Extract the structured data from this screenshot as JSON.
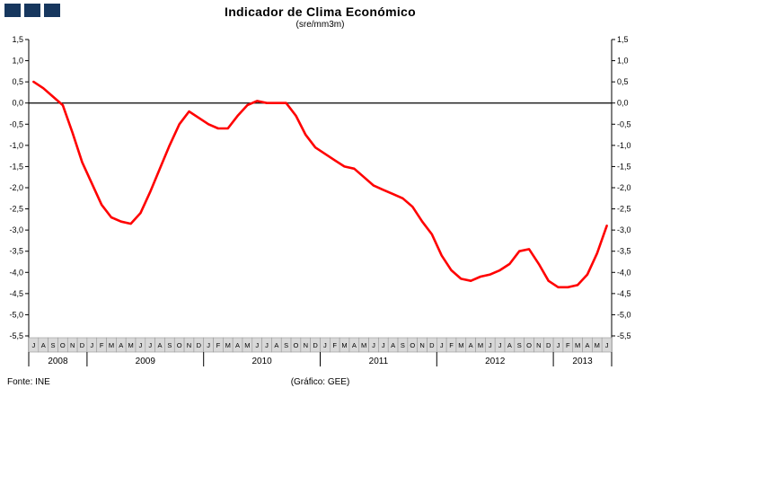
{
  "header": {
    "title": "Indicador de Clima Económico",
    "subtitle": "(sre/mm3m)"
  },
  "footer": {
    "source": "Fonte: INE",
    "credit": "(Gráfico: GEE)"
  },
  "brand": {
    "square_color": "#17375E",
    "square_count": 3
  },
  "chart_data": {
    "type": "line",
    "title": "Indicador de Clima Económico",
    "subtitle": "(sre/mm3m)",
    "ylim": [
      -5.5,
      1.5
    ],
    "ytick_step": 0.5,
    "ytick_labels": [
      "1,5",
      "1,0",
      "0,5",
      "0,0",
      "-0,5",
      "-1,0",
      "-1,5",
      "-2,0",
      "-2,5",
      "-3,0",
      "-3,5",
      "-4,0",
      "-4,5",
      "-5,0",
      "-5,5"
    ],
    "series_color": "#ff0000",
    "zero_line": true,
    "grid": false,
    "legend": "none",
    "years": [
      {
        "label": "2008",
        "months": [
          "J",
          "A",
          "S",
          "O",
          "N",
          "D"
        ]
      },
      {
        "label": "2009",
        "months": [
          "J",
          "F",
          "M",
          "A",
          "M",
          "J",
          "J",
          "A",
          "S",
          "O",
          "N",
          "D"
        ]
      },
      {
        "label": "2010",
        "months": [
          "J",
          "F",
          "M",
          "A",
          "M",
          "J",
          "J",
          "A",
          "S",
          "O",
          "N",
          "D"
        ]
      },
      {
        "label": "2011",
        "months": [
          "J",
          "F",
          "M",
          "A",
          "M",
          "J",
          "J",
          "A",
          "S",
          "O",
          "N",
          "D"
        ]
      },
      {
        "label": "2012",
        "months": [
          "J",
          "F",
          "M",
          "A",
          "M",
          "J",
          "J",
          "A",
          "S",
          "O",
          "N",
          "D"
        ]
      },
      {
        "label": "2013",
        "months": [
          "J",
          "F",
          "M",
          "A",
          "M",
          "J"
        ]
      }
    ],
    "values": [
      0.5,
      0.35,
      0.15,
      -0.05,
      -0.7,
      -1.4,
      -1.9,
      -2.4,
      -2.7,
      -2.8,
      -2.85,
      -2.6,
      -2.1,
      -1.55,
      -1.0,
      -0.5,
      -0.2,
      -0.35,
      -0.5,
      -0.6,
      -0.6,
      -0.3,
      -0.05,
      0.05,
      0.0,
      0.0,
      0.0,
      -0.3,
      -0.75,
      -1.05,
      -1.2,
      -1.35,
      -1.5,
      -1.55,
      -1.75,
      -1.95,
      -2.05,
      -2.15,
      -2.25,
      -2.45,
      -2.8,
      -3.1,
      -3.6,
      -3.95,
      -4.15,
      -4.2,
      -4.1,
      -4.05,
      -3.95,
      -3.8,
      -3.5,
      -3.45,
      -3.8,
      -4.2,
      -4.35,
      -4.35,
      -4.3,
      -4.05,
      -3.55,
      -2.9
    ]
  }
}
